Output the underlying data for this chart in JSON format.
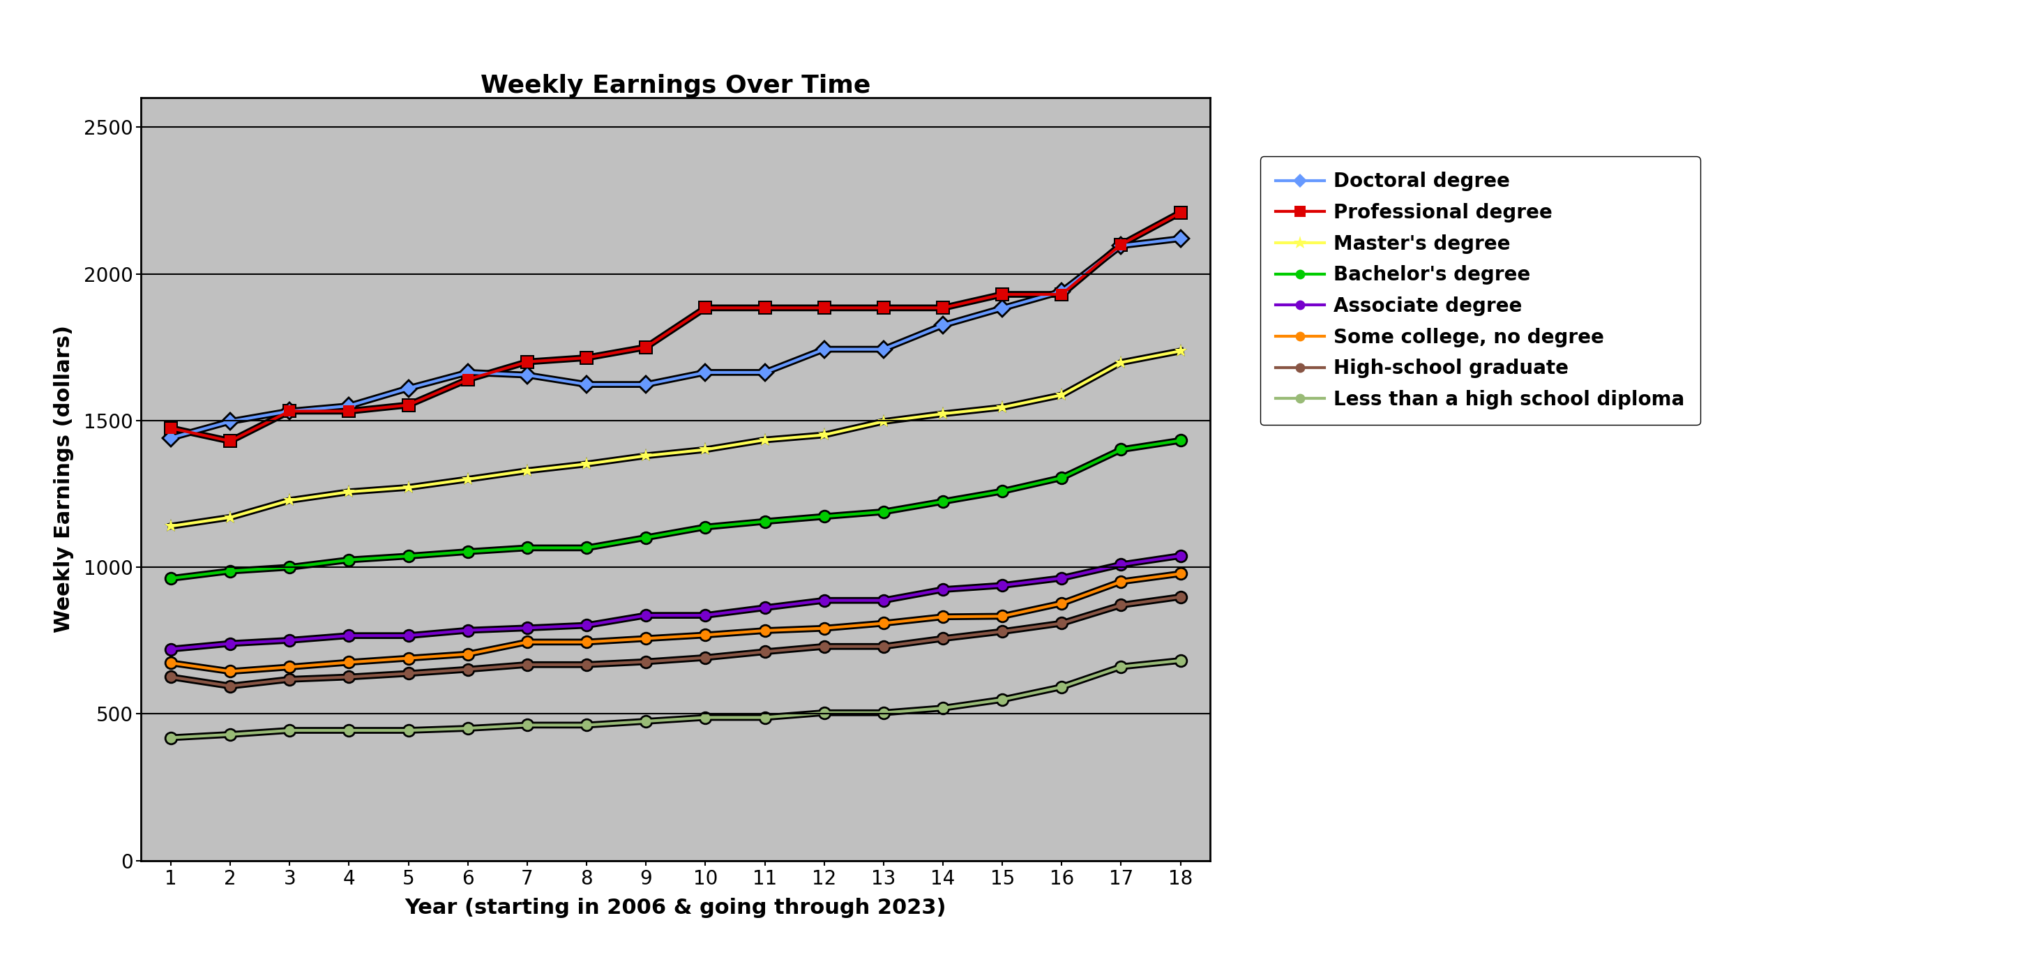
{
  "title": "Weekly Earnings Over Time",
  "xlabel": "Year (starting in 2006 & going through 2023)",
  "ylabel": "Weekly Earnings (dollars)",
  "years": [
    1,
    2,
    3,
    4,
    5,
    6,
    7,
    8,
    9,
    10,
    11,
    12,
    13,
    14,
    15,
    16,
    17,
    18
  ],
  "series": [
    {
      "label": "Doctoral degree",
      "color": "#6699FF",
      "marker": "D",
      "markersize": 10,
      "linewidth": 3.0,
      "values": [
        1441,
        1497,
        1532,
        1550,
        1610,
        1664,
        1655,
        1623,
        1623,
        1664,
        1664,
        1743,
        1743,
        1825,
        1883,
        1940,
        2096,
        2120
      ]
    },
    {
      "label": "Professional degree",
      "color": "#DD0000",
      "marker": "s",
      "markersize": 11,
      "linewidth": 3.0,
      "values": [
        1474,
        1430,
        1532,
        1532,
        1553,
        1640,
        1700,
        1714,
        1750,
        1884,
        1884,
        1884,
        1884,
        1884,
        1930,
        1930,
        2100,
        2209
      ]
    },
    {
      "label": "Master's degree",
      "color": "#FFFF55",
      "marker": "*",
      "markersize": 14,
      "linewidth": 3.0,
      "values": [
        1140,
        1170,
        1228,
        1257,
        1272,
        1300,
        1329,
        1352,
        1380,
        1401,
        1434,
        1451,
        1497,
        1523,
        1545,
        1587,
        1698,
        1737
      ]
    },
    {
      "label": "Bachelor's degree",
      "color": "#00CC00",
      "marker": "o",
      "markersize": 10,
      "linewidth": 3.0,
      "values": [
        962,
        987,
        1000,
        1025,
        1038,
        1053,
        1066,
        1066,
        1101,
        1137,
        1156,
        1173,
        1189,
        1224,
        1259,
        1305,
        1401,
        1432
      ]
    },
    {
      "label": "Associate degree",
      "color": "#7700CC",
      "marker": "o",
      "markersize": 10,
      "linewidth": 3.0,
      "values": [
        721,
        740,
        751,
        767,
        767,
        785,
        793,
        802,
        836,
        836,
        862,
        887,
        887,
        924,
        938,
        963,
        1009,
        1039
      ]
    },
    {
      "label": "Some college, no degree",
      "color": "#FF8800",
      "marker": "o",
      "markersize": 10,
      "linewidth": 3.0,
      "values": [
        674,
        645,
        660,
        676,
        690,
        704,
        745,
        745,
        757,
        769,
        784,
        792,
        809,
        831,
        833,
        877,
        951,
        978
      ]
    },
    {
      "label": "High-school graduate",
      "color": "#885544",
      "marker": "o",
      "markersize": 10,
      "linewidth": 3.0,
      "values": [
        626,
        595,
        618,
        626,
        638,
        652,
        668,
        668,
        678,
        692,
        712,
        730,
        730,
        757,
        781,
        809,
        871,
        899
      ]
    },
    {
      "label": "Less than a high school diploma",
      "color": "#99BB77",
      "marker": "o",
      "markersize": 10,
      "linewidth": 3.0,
      "values": [
        419,
        430,
        444,
        444,
        444,
        451,
        462,
        462,
        475,
        488,
        488,
        504,
        504,
        520,
        549,
        592,
        661,
        682
      ]
    }
  ],
  "ylim": [
    0,
    2600
  ],
  "yticks": [
    0,
    500,
    1000,
    1500,
    2000,
    2500
  ],
  "xlim": [
    0.5,
    18.5
  ],
  "xticks": [
    1,
    2,
    3,
    4,
    5,
    6,
    7,
    8,
    9,
    10,
    11,
    12,
    13,
    14,
    15,
    16,
    17,
    18
  ],
  "plot_bg_color": "#C0C0C0",
  "fig_bg_color": "#FFFFFF",
  "title_fontsize": 26,
  "label_fontsize": 22,
  "tick_fontsize": 20,
  "legend_fontsize": 20,
  "shadow_linewidth": 7.0,
  "shadow_markersize": 14
}
